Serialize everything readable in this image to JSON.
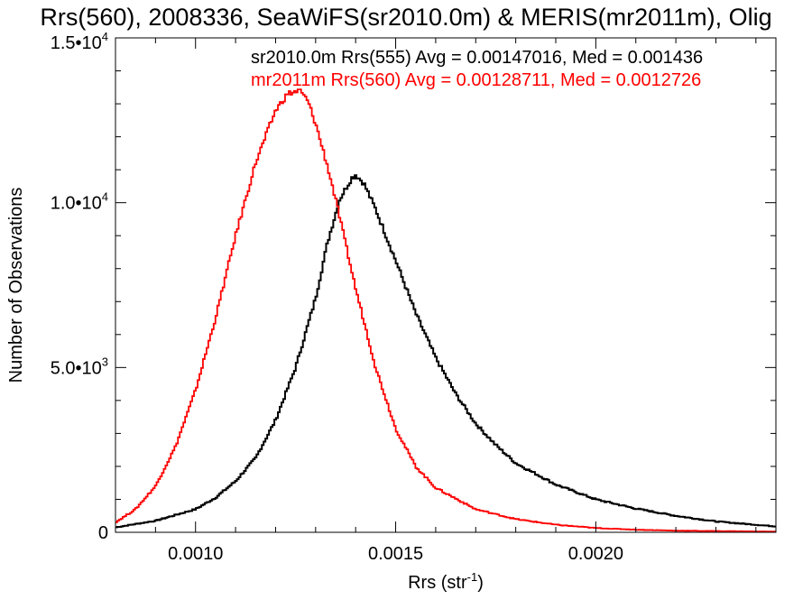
{
  "chart_data": {
    "type": "line",
    "title": "Rrs(560), 2008336, SeaWiFS(sr2010.0m) & MERIS(mr2011m), Olig",
    "xlabel": {
      "base": "Rrs (str",
      "sup": "-1",
      "tail": ")"
    },
    "ylabel": "Number of Observations",
    "xlim": [
      0.0008,
      0.00245
    ],
    "ylim": [
      0,
      15000
    ],
    "grid": false,
    "legend_position": "top-right",
    "x_ticks": [
      {
        "value": 0.001,
        "label": "0.0010"
      },
      {
        "value": 0.0015,
        "label": "0.0015"
      },
      {
        "value": 0.002,
        "label": "0.0020"
      }
    ],
    "y_ticks": [
      {
        "value": 0,
        "mant": "0",
        "exp": ""
      },
      {
        "value": 5000,
        "mant": "5.0•10",
        "exp": "3"
      },
      {
        "value": 10000,
        "mant": "1.0•10",
        "exp": "4"
      },
      {
        "value": 15000,
        "mant": "1.5•10",
        "exp": "4"
      }
    ],
    "series": [
      {
        "name": "sr2010.0m Rrs(555) Avg = 0.00147016, Med = 0.001436",
        "color": "#000000",
        "x": [
          0.0008,
          0.0009,
          0.001,
          0.00105,
          0.0011,
          0.00115,
          0.0012,
          0.00125,
          0.0013,
          0.00133,
          0.00136,
          0.00139,
          0.0014,
          0.00142,
          0.00145,
          0.0015,
          0.00155,
          0.0016,
          0.00165,
          0.0017,
          0.00175,
          0.0018,
          0.0019,
          0.002,
          0.0021,
          0.0022,
          0.0023,
          0.00245
        ],
        "y": [
          150,
          350,
          700,
          1050,
          1550,
          2250,
          3400,
          5000,
          7100,
          8800,
          10100,
          10750,
          10850,
          10600,
          9800,
          8250,
          6650,
          5300,
          4200,
          3300,
          2650,
          2100,
          1450,
          1000,
          720,
          500,
          330,
          180
        ]
      },
      {
        "name": "mr2011m Rrs(560) Avg = 0.00128711, Med = 0.0012726",
        "color": "#ff0000",
        "x": [
          0.0008,
          0.00085,
          0.0009,
          0.00095,
          0.001,
          0.00105,
          0.0011,
          0.00115,
          0.0012,
          0.00123,
          0.00126,
          0.00128,
          0.0013,
          0.00133,
          0.00135,
          0.0014,
          0.00145,
          0.0015,
          0.00155,
          0.0016,
          0.0017,
          0.0018,
          0.0019,
          0.002,
          0.0021,
          0.0022,
          0.00245
        ],
        "y": [
          300,
          700,
          1400,
          2600,
          4300,
          6500,
          9000,
          11200,
          12800,
          13300,
          13400,
          13100,
          12400,
          11100,
          10100,
          7400,
          5000,
          3150,
          2000,
          1350,
          700,
          400,
          230,
          130,
          80,
          50,
          20
        ]
      }
    ]
  }
}
